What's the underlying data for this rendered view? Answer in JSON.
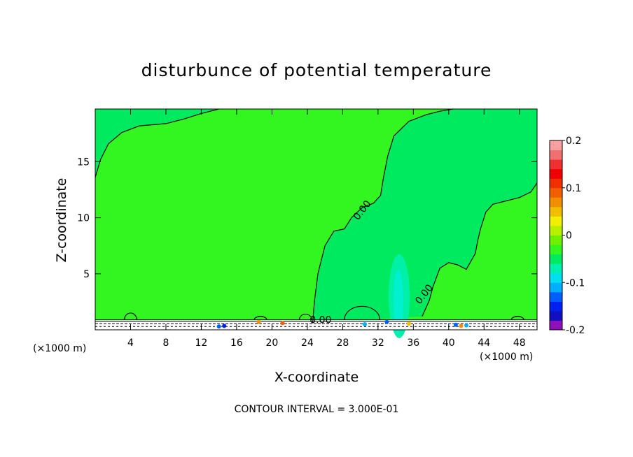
{
  "chart_data": {
    "type": "heatmap",
    "title": "disturbunce of potential temperature",
    "xlabel": "X-coordinate",
    "ylabel": "Z-coordinate",
    "x_unit_left": "(×1000 m)",
    "x_unit_right": "(×1000 m)",
    "footnote": "CONTOUR INTERVAL = 3.000E-01",
    "xlim": [
      0,
      50
    ],
    "ylim": [
      0,
      19.7
    ],
    "xticks": [
      4,
      8,
      12,
      16,
      20,
      24,
      28,
      32,
      36,
      40,
      44,
      48
    ],
    "yticks": [
      5,
      10,
      15
    ],
    "background_color": "#33f520",
    "main_field_color": "#33f520",
    "near_zero_negative_color": "#00ea60",
    "contour_labels": [
      {
        "text": "0.00",
        "x": 30.5,
        "y": 10.5
      },
      {
        "text": "0.00",
        "x": 37.5,
        "y": 3.0
      },
      {
        "text": "0.00",
        "x": 25.5,
        "y": 0.6
      }
    ],
    "zero_contour_left": [
      [
        0,
        13.6
      ],
      [
        0.6,
        15.2
      ],
      [
        1.5,
        16.6
      ],
      [
        3,
        17.6
      ],
      [
        5,
        18.2
      ],
      [
        8,
        18.4
      ],
      [
        10,
        18.8
      ],
      [
        12,
        19.3
      ],
      [
        14,
        19.7
      ]
    ],
    "zero_contour_right": [
      [
        24.6,
        0.6
      ],
      [
        24.8,
        2.5
      ],
      [
        25.2,
        5
      ],
      [
        26,
        7.5
      ],
      [
        27,
        8.8
      ],
      [
        28.2,
        9
      ],
      [
        29,
        10
      ],
      [
        30.2,
        10.9
      ],
      [
        31.5,
        11.3
      ],
      [
        32.3,
        12
      ],
      [
        32.6,
        13.5
      ],
      [
        33.1,
        15.5
      ],
      [
        33.8,
        17.3
      ],
      [
        35.5,
        18.6
      ],
      [
        37.5,
        19.2
      ],
      [
        39,
        19.5
      ],
      [
        40.5,
        19.7
      ]
    ],
    "zero_contour_right2": [
      [
        37,
        1.2
      ],
      [
        37.8,
        2.6
      ],
      [
        38.2,
        3.8
      ],
      [
        39,
        5.5
      ],
      [
        40,
        6
      ],
      [
        41,
        5.8
      ],
      [
        42,
        5.4
      ],
      [
        43,
        6.8
      ],
      [
        43.3,
        8
      ],
      [
        43.6,
        9
      ],
      [
        44.2,
        10.5
      ],
      [
        45,
        11.2
      ],
      [
        46.5,
        11.5
      ],
      [
        48,
        11.8
      ],
      [
        49.3,
        12.3
      ],
      [
        50,
        13.1
      ]
    ],
    "colorbar": {
      "ticks": [
        "0.2",
        "0.1",
        "0",
        "-0.1",
        "-0.2"
      ],
      "vmin": -0.2,
      "vmax": 0.2,
      "colors": [
        "#8e10b8",
        "#1010c0",
        "#0020f0",
        "#0060ff",
        "#00b0ff",
        "#00e0f0",
        "#00f0b0",
        "#00ea60",
        "#33f520",
        "#70f000",
        "#b8f000",
        "#f0f000",
        "#f0c000",
        "#f09000",
        "#f06000",
        "#f03000",
        "#f00000",
        "#f03030",
        "#f07070",
        "#f8a0a0"
      ]
    }
  }
}
